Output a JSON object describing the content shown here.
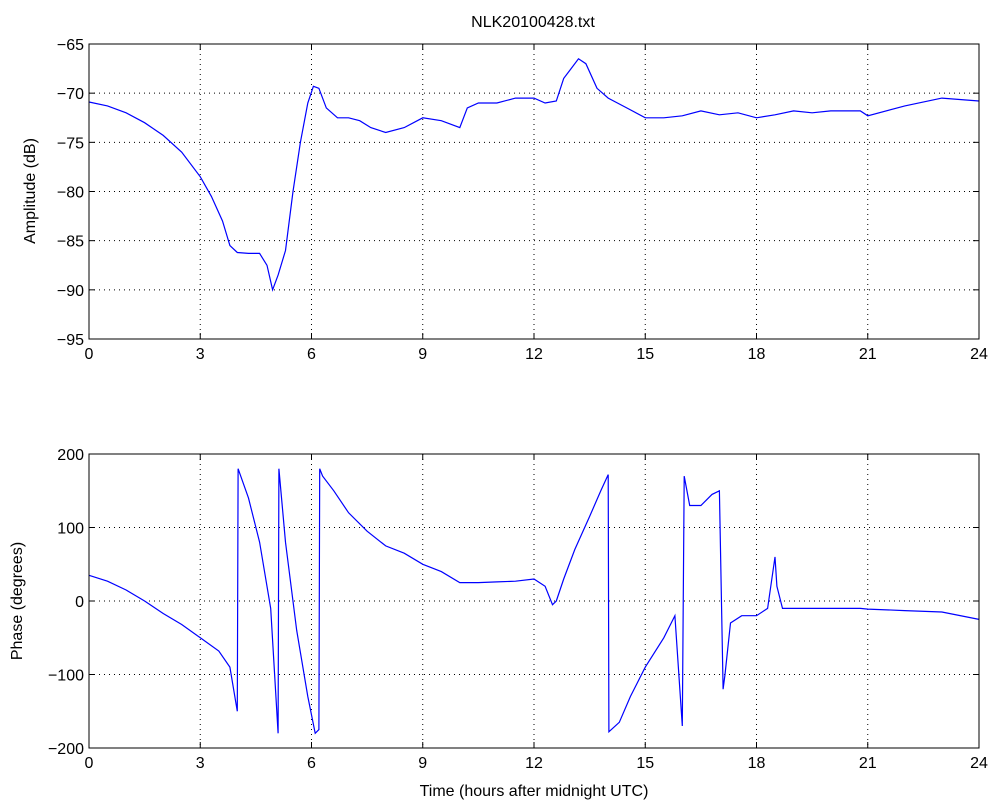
{
  "figure": {
    "title": "NLK20100428.txt"
  },
  "chart_data": [
    {
      "type": "line",
      "title": "NLK20100428.txt",
      "xlabel": "",
      "ylabel": "Amplitude (dB)",
      "xlim": [
        0,
        24
      ],
      "ylim": [
        -95,
        -65
      ],
      "xticks": [
        0,
        3,
        6,
        9,
        12,
        15,
        18,
        21,
        24
      ],
      "yticks": [
        -95,
        -90,
        -85,
        -80,
        -75,
        -70,
        -65
      ],
      "grid": true,
      "line_color": "#0000ff",
      "series": [
        {
          "x": [
            0,
            0.5,
            1,
            1.5,
            2,
            2.5,
            3,
            3.3,
            3.6,
            3.8,
            4.0,
            4.3,
            4.6,
            4.8,
            4.95,
            5.1,
            5.3,
            5.5,
            5.7,
            5.9,
            6.05,
            6.2,
            6.4,
            6.7,
            7.0,
            7.3,
            7.6,
            8.0,
            8.5,
            9.0,
            9.5,
            10.0,
            10.2,
            10.5,
            11.0,
            11.5,
            12.0,
            12.3,
            12.6,
            12.8,
            13.0,
            13.2,
            13.4,
            13.7,
            14.0,
            14.5,
            15.0,
            15.5,
            16.0,
            16.5,
            17.0,
            17.5,
            18.0,
            18.5,
            19.0,
            19.5,
            20.0,
            20.5,
            20.8,
            21.0,
            22.0,
            23.0,
            24.0
          ],
          "y": [
            -70.9,
            -71.3,
            -72.0,
            -73.0,
            -74.3,
            -76.0,
            -78.5,
            -80.5,
            -83.0,
            -85.5,
            -86.2,
            -86.3,
            -86.3,
            -87.5,
            -90.0,
            -88.5,
            -86.0,
            -80.0,
            -75.0,
            -71.0,
            -69.3,
            -69.5,
            -71.5,
            -72.5,
            -72.5,
            -72.8,
            -73.5,
            -74.0,
            -73.5,
            -72.5,
            -72.8,
            -73.5,
            -71.5,
            -71.0,
            -71.0,
            -70.5,
            -70.5,
            -71.0,
            -70.8,
            -68.5,
            -67.5,
            -66.5,
            -67.0,
            -69.5,
            -70.5,
            -71.5,
            -72.5,
            -72.5,
            -72.3,
            -71.8,
            -72.2,
            -72.0,
            -72.5,
            -72.2,
            -71.8,
            -72.0,
            -71.8,
            -71.8,
            -71.8,
            -72.3,
            -71.3,
            -70.5,
            -70.8
          ]
        }
      ]
    },
    {
      "type": "line",
      "title": "",
      "xlabel": "Time (hours after midnight UTC)",
      "ylabel": "Phase (degrees)",
      "xlim": [
        0,
        24
      ],
      "ylim": [
        -200,
        200
      ],
      "xticks": [
        0,
        3,
        6,
        9,
        12,
        15,
        18,
        21,
        24
      ],
      "yticks": [
        -200,
        -100,
        0,
        100,
        200
      ],
      "grid": true,
      "line_color": "#0000ff",
      "series": [
        {
          "x": [
            0,
            0.5,
            1.0,
            1.5,
            2.0,
            2.5,
            3.0,
            3.5,
            3.8,
            4.0,
            4.02,
            4.3,
            4.6,
            4.9,
            5.1,
            5.12,
            5.3,
            5.6,
            5.9,
            6.1,
            6.2,
            6.22,
            6.3,
            6.6,
            7.0,
            7.5,
            8.0,
            8.5,
            9.0,
            9.5,
            10.0,
            10.5,
            11.0,
            11.5,
            12.0,
            12.3,
            12.5,
            12.6,
            12.8,
            13.1,
            13.5,
            13.8,
            14.0,
            14.02,
            14.3,
            14.6,
            15.0,
            15.5,
            15.8,
            16.0,
            16.05,
            16.2,
            16.5,
            16.8,
            17.0,
            17.1,
            17.15,
            17.3,
            17.6,
            18.0,
            18.3,
            18.5,
            18.55,
            18.7,
            19.0,
            19.5,
            20.0,
            20.5,
            20.8,
            21.0,
            22.0,
            23.0,
            24.0
          ],
          "y": [
            35,
            27,
            15,
            0,
            -17,
            -32,
            -50,
            -68,
            -90,
            -150,
            180,
            140,
            80,
            -10,
            -180,
            180,
            80,
            -40,
            -130,
            -180,
            -175,
            180,
            170,
            150,
            120,
            95,
            75,
            65,
            50,
            40,
            25,
            25,
            26,
            27,
            30,
            20,
            -5,
            0,
            30,
            70,
            115,
            150,
            172,
            -178,
            -165,
            -130,
            -90,
            -50,
            -20,
            -170,
            170,
            130,
            130,
            145,
            150,
            -120,
            -100,
            -30,
            -20,
            -20,
            -10,
            60,
            20,
            -10,
            -10,
            -10,
            -10,
            -10,
            -10,
            -11,
            -13,
            -15,
            -25
          ]
        }
      ]
    }
  ]
}
